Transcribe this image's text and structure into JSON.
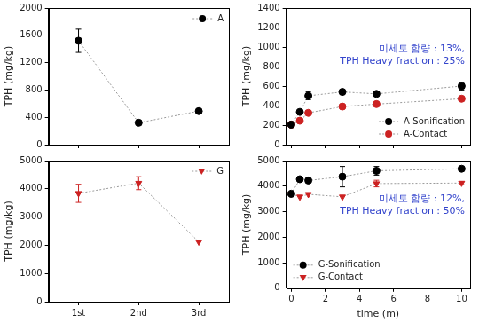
{
  "chart_data": [
    {
      "type": "line",
      "ylabel": "TPH (mg/kg)",
      "categories": [
        "1st",
        "2nd",
        "3rd"
      ],
      "series": [
        {
          "name": "A",
          "color": "#000000",
          "marker": "circle",
          "line_style": "dotted",
          "values": [
            1520,
            320,
            490
          ],
          "errors": [
            170,
            30,
            20
          ]
        }
      ],
      "ylim": [
        0,
        2000
      ],
      "yticks": [
        0,
        400,
        800,
        1200,
        1600,
        2000
      ],
      "grid": false,
      "legend": "upper right",
      "tick_labels": "y"
    },
    {
      "type": "line",
      "ylabel": "TPH (mg/kg)",
      "categories": [
        "1st",
        "2nd",
        "3rd"
      ],
      "series": [
        {
          "name": "G",
          "color": "#cc2222",
          "marker": "triangle-down",
          "line_style": "dotted",
          "values": [
            3840,
            4200,
            2120
          ],
          "errors": [
            320,
            230,
            null
          ]
        }
      ],
      "ylim": [
        0,
        5000
      ],
      "yticks": [
        0,
        1000,
        2000,
        3000,
        4000,
        5000
      ],
      "grid": false,
      "legend": "upper right",
      "tick_labels": true
    },
    {
      "type": "line",
      "ylabel": "TPH (mg/kg)",
      "x": [
        0,
        0.5,
        1,
        3,
        5,
        10
      ],
      "series": [
        {
          "name": "A-Sonification",
          "color": "#000000",
          "marker": "circle",
          "line_style": "dotted",
          "values": [
            205,
            335,
            500,
            540,
            520,
            600
          ],
          "errors": [
            null,
            null,
            40,
            25,
            20,
            40
          ]
        },
        {
          "name": "A-Contact",
          "color": "#cc2222",
          "marker": "circle",
          "line_style": "dotted",
          "values": [
            205,
            245,
            325,
            390,
            415,
            470
          ],
          "errors": [
            null,
            null,
            null,
            null,
            null,
            null
          ]
        }
      ],
      "xlim": [
        -0.3,
        10.5
      ],
      "xticks": [
        0,
        2,
        4,
        6,
        8,
        10
      ],
      "ylim": [
        0,
        1400
      ],
      "yticks": [
        0,
        200,
        400,
        600,
        800,
        1000,
        1200,
        1400
      ],
      "annotations": [
        "미세토 함량 : 13%,",
        "TPH Heavy fraction : 25%"
      ],
      "grid": false,
      "legend": "lower right",
      "tick_labels": "y"
    },
    {
      "type": "line",
      "ylabel": "TPH (mg/kg)",
      "xlabel": "time (m)",
      "x": [
        0,
        0.5,
        1,
        3,
        5,
        10
      ],
      "series": [
        {
          "name": "G-Sonification",
          "color": "#000000",
          "marker": "circle",
          "line_style": "dotted",
          "values": [
            3700,
            4270,
            4220,
            4370,
            4600,
            4680
          ],
          "errors": [
            null,
            null,
            null,
            400,
            170,
            null
          ]
        },
        {
          "name": "G-Contact",
          "color": "#cc2222",
          "marker": "triangle-down",
          "line_style": "dotted",
          "values": [
            3700,
            3580,
            3680,
            3580,
            4100,
            4120
          ],
          "errors": [
            null,
            null,
            null,
            null,
            130,
            60
          ]
        }
      ],
      "xlim": [
        -0.3,
        10.5
      ],
      "xticks": [
        0,
        2,
        4,
        6,
        8,
        10
      ],
      "ylim": [
        0,
        5000
      ],
      "yticks": [
        0,
        1000,
        2000,
        3000,
        4000,
        5000
      ],
      "annotations": [
        "미세토 함량 : 12%,",
        "TPH Heavy fraction : 50%"
      ],
      "grid": false,
      "legend": "lower left",
      "tick_labels": true
    }
  ]
}
